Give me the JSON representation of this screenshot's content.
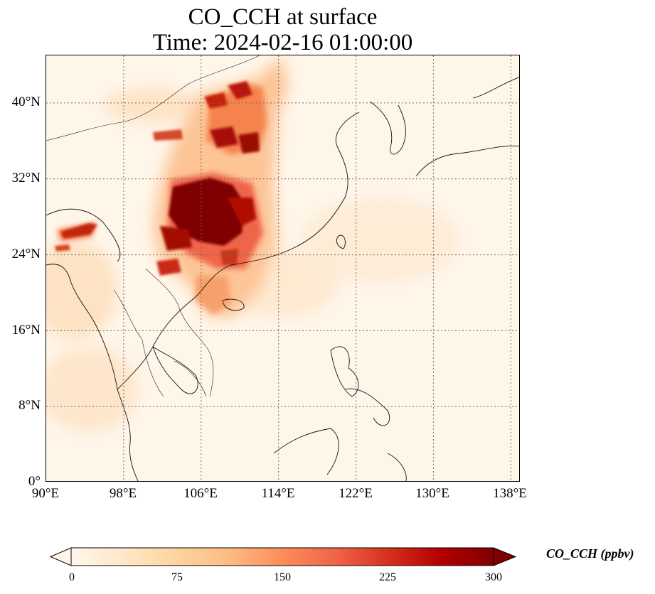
{
  "title": {
    "line1": "CO_CCH at surface",
    "line2": "Time: 2024-02-16 01:00:00"
  },
  "map": {
    "variable": "CO_CCH",
    "level": "surface",
    "lon_range": [
      90,
      139
    ],
    "lat_range": [
      0,
      45
    ],
    "gridlines": "dotted",
    "colormap": "OrRd",
    "lon_ticks": [
      "90°E",
      "98°E",
      "106°E",
      "114°E",
      "122°E",
      "130°E",
      "138°E"
    ],
    "lat_ticks": [
      "0°",
      "8°N",
      "16°N",
      "24°N",
      "32°N",
      "40°N"
    ]
  },
  "colorbar": {
    "label": "CO_CCH (ppbv)",
    "ticks": [
      "0",
      "75",
      "150",
      "225",
      "300"
    ],
    "min": 0,
    "max": 300,
    "extend": "both",
    "colors": [
      "#fff7ec",
      "#fee8c8",
      "#fdd49e",
      "#fdbb84",
      "#fc8d59",
      "#ef6548",
      "#d7301f",
      "#b30000",
      "#7f0000"
    ]
  }
}
